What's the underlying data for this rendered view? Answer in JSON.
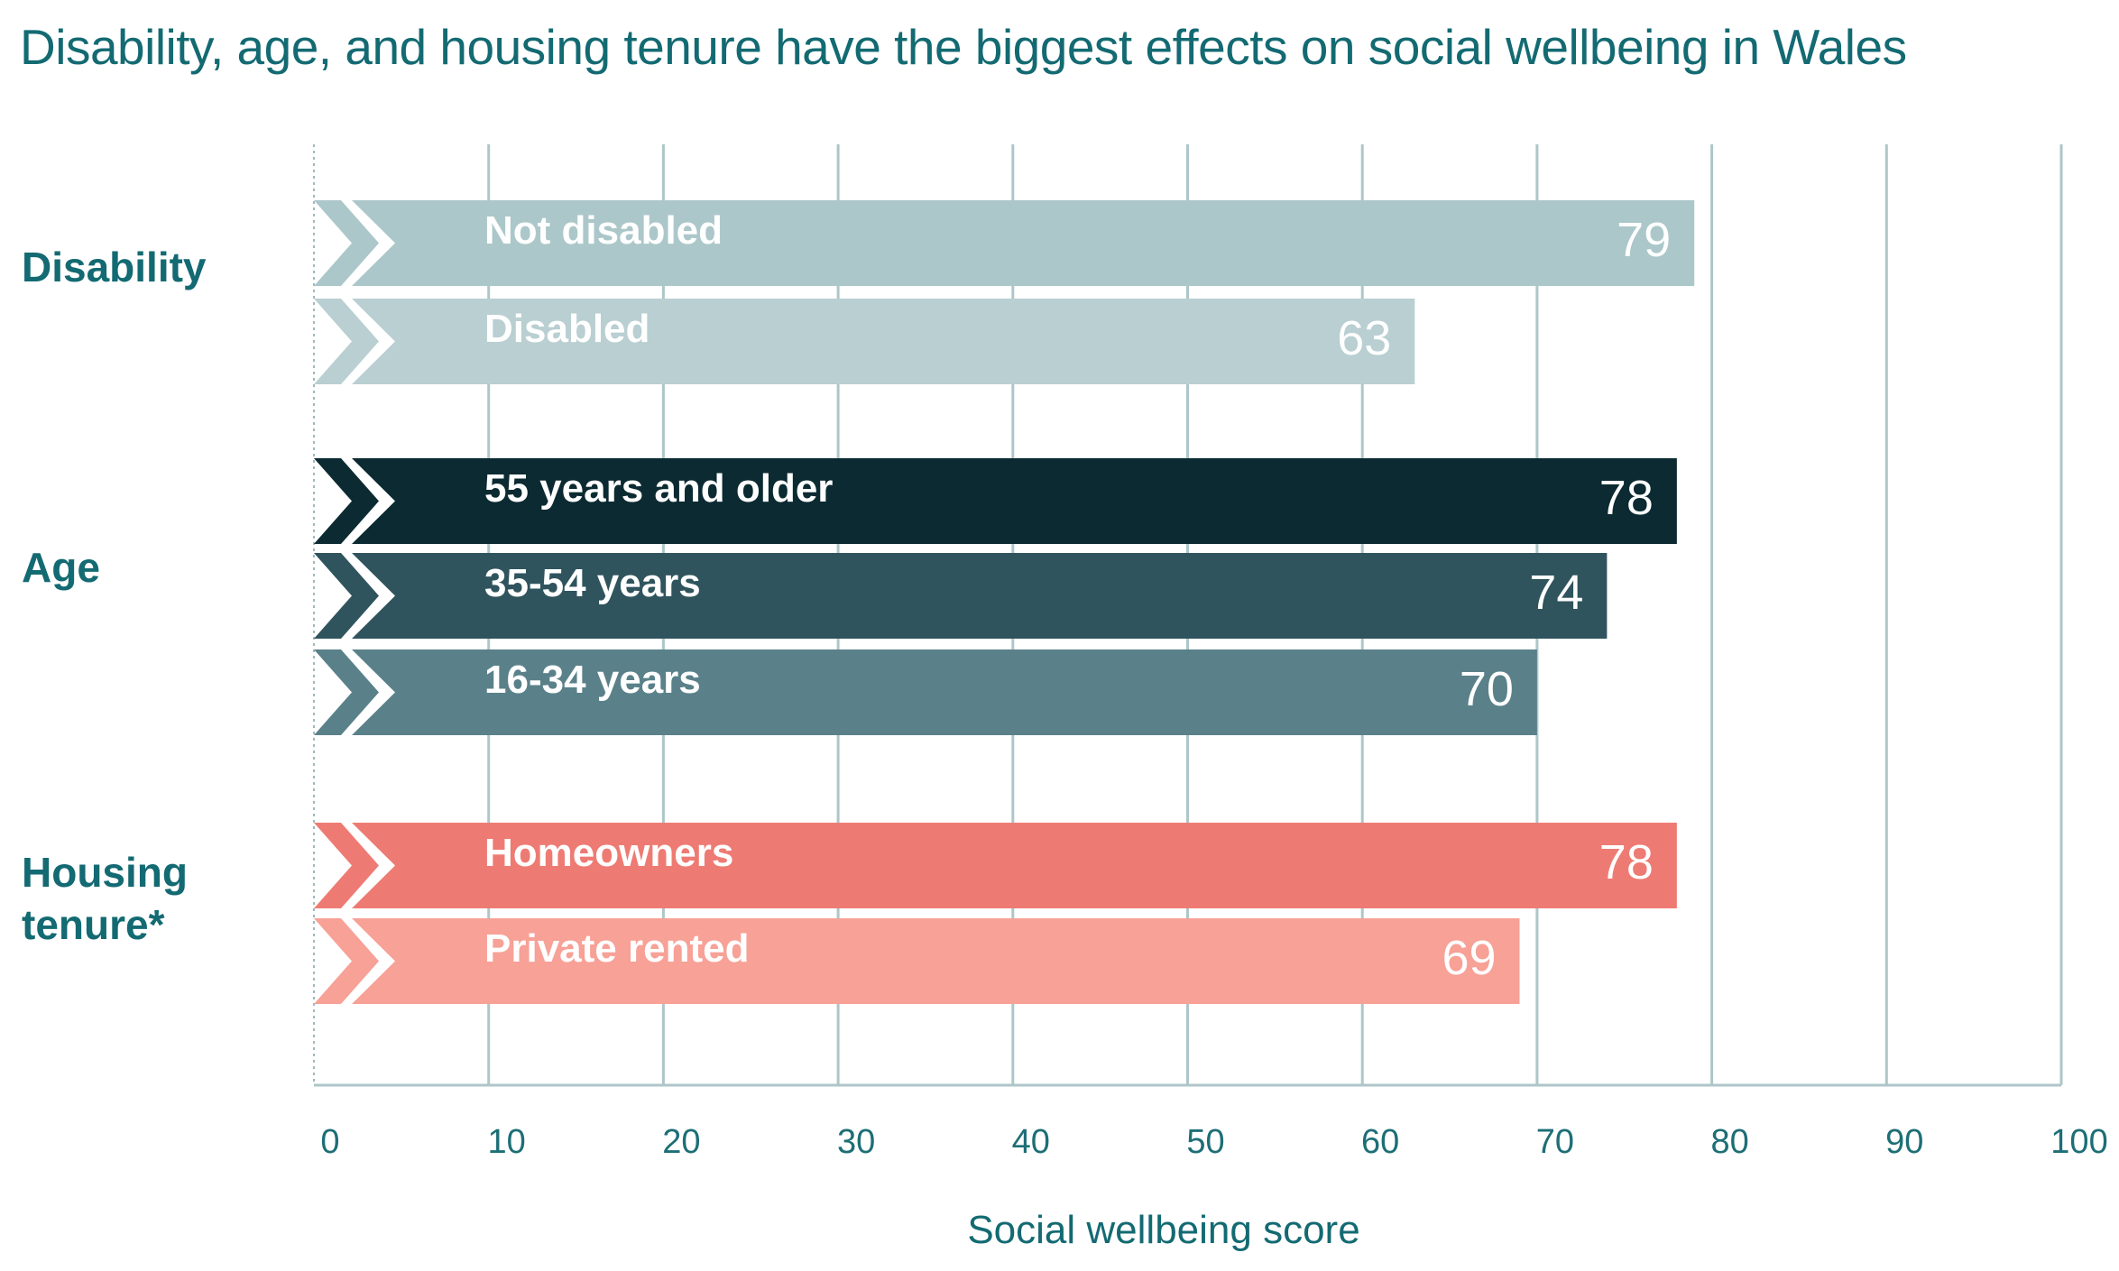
{
  "chart_data": {
    "type": "bar",
    "orientation": "horizontal",
    "title": "Disability, age, and housing tenure have the biggest effects on social wellbeing in Wales",
    "xlabel": "Social wellbeing score",
    "xlim": [
      0,
      100
    ],
    "xticks": [
      0,
      10,
      20,
      30,
      40,
      50,
      60,
      70,
      80,
      90,
      100
    ],
    "grid": true,
    "groups": [
      {
        "label": "Disability",
        "bars": [
          {
            "label": "Not disabled",
            "value": 79,
            "color": "#acc7c9"
          },
          {
            "label": "Disabled",
            "value": 63,
            "color": "#b9cfd1"
          }
        ]
      },
      {
        "label": "Age",
        "bars": [
          {
            "label": "55 years and older",
            "value": 78,
            "color": "#0b2a31"
          },
          {
            "label": "35-54 years",
            "value": 74,
            "color": "#2f545d"
          },
          {
            "label": "16-34 years",
            "value": 70,
            "color": "#5a818a"
          }
        ]
      },
      {
        "label": "Housing tenure*",
        "bars": [
          {
            "label": "Homeowners",
            "value": 78,
            "color": "#ee7b73"
          },
          {
            "label": "Private rented",
            "value": 69,
            "color": "#f7a197"
          }
        ]
      }
    ]
  }
}
